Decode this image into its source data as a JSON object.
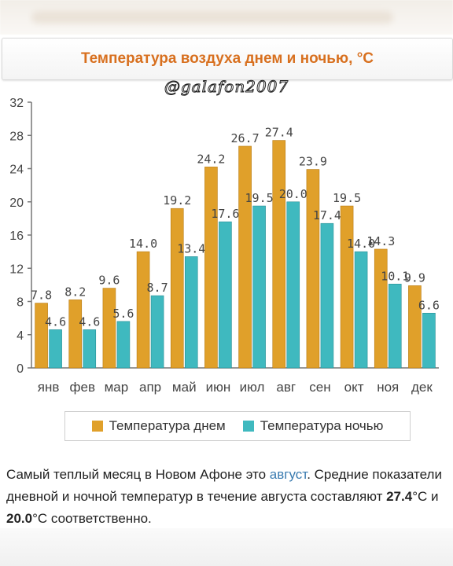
{
  "header": {
    "title": "Температура воздуха днем и ночью, °C"
  },
  "watermark": "@galafon2007",
  "colors": {
    "day": "#e0a02a",
    "night": "#3fb9bf",
    "title": "#d8701f",
    "link": "#3a7bb0"
  },
  "chart_data": {
    "type": "bar",
    "title": "Температура воздуха днем и ночью, °C",
    "categories": [
      "янв",
      "фев",
      "мар",
      "апр",
      "май",
      "июн",
      "июл",
      "авг",
      "сен",
      "окт",
      "ноя",
      "дек"
    ],
    "series": [
      {
        "name": "Температура днем",
        "values": [
          7.8,
          8.2,
          9.6,
          14.0,
          19.2,
          24.2,
          26.7,
          27.4,
          23.9,
          19.5,
          14.3,
          9.9
        ]
      },
      {
        "name": "Температура ночью",
        "values": [
          4.6,
          4.6,
          5.6,
          8.7,
          13.4,
          17.6,
          19.5,
          20.0,
          17.4,
          14.0,
          10.1,
          6.6
        ]
      }
    ],
    "value_labels": {
      "day": [
        "7.8",
        "8.2",
        "9.6",
        "14.0",
        "19.2",
        "24.2",
        "26.7",
        "27.4",
        "23.9",
        "19.5",
        "14.3",
        "9.9"
      ],
      "night": [
        "4.6",
        "4.6",
        "5.6",
        "8.7",
        "13.4",
        "17.6",
        "19.5",
        "20.0",
        "17.4",
        "14.0",
        "10.1",
        "6.6"
      ]
    },
    "yticks": [
      "0",
      "4",
      "8",
      "12",
      "16",
      "20",
      "24",
      "28",
      "32"
    ],
    "ylim": [
      0,
      32
    ],
    "grid": false,
    "legend_position": "bottom"
  },
  "legend": {
    "day": "Температура днем",
    "night": "Температура ночью"
  },
  "description": {
    "before_link": "Самый теплый месяц в Новом Афоне это ",
    "link": "август",
    "middle": ". Средние показатели дневной и ночной температур в течение августа составляют ",
    "day_value": "27.4",
    "unit1": "°C и ",
    "night_value": "20.0",
    "unit2": "°C соответственно."
  }
}
